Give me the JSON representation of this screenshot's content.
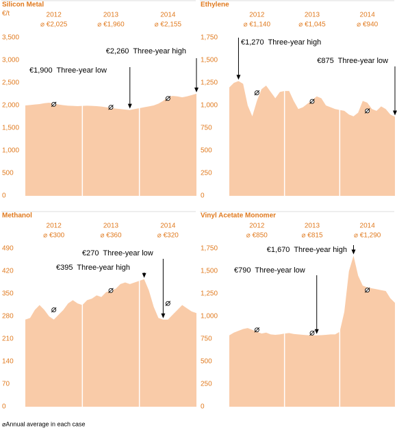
{
  "chart_data": [
    {
      "type": "area",
      "title": "Silicon Metal",
      "unit": "€/t",
      "color": "#f9cba8",
      "years": [
        "2012",
        "2013",
        "2014"
      ],
      "averages": [
        2025,
        1960,
        2155
      ],
      "value_labels": [
        "⌀ €2,025",
        "⌀ €1,960",
        "⌀ €2,155"
      ],
      "xlim": [
        0,
        36
      ],
      "x": [
        0,
        1,
        2,
        3,
        4,
        5,
        6,
        7,
        8,
        9,
        10,
        11,
        12,
        13,
        14,
        15,
        16,
        17,
        18,
        19,
        20,
        21,
        22,
        23,
        24,
        25,
        26,
        27,
        28,
        29,
        30,
        31,
        32,
        33,
        34,
        35,
        36
      ],
      "values": [
        2000,
        2010,
        2020,
        2030,
        2050,
        2060,
        2040,
        2020,
        2005,
        1995,
        1990,
        1985,
        1990,
        1995,
        1990,
        1985,
        1975,
        1960,
        1945,
        1930,
        1920,
        1910,
        1900,
        1920,
        1940,
        1960,
        1980,
        2000,
        2040,
        2100,
        2190,
        2210,
        2200,
        2180,
        2200,
        2230,
        2260
      ],
      "ylim": [
        0,
        3500
      ],
      "yticks": [
        0,
        500,
        {
          "value": 1000,
          "label": "1,000"
        },
        {
          "value": 1500,
          "label": "1,500"
        },
        {
          "value": 2000,
          "label": "2,000"
        },
        {
          "value": 2500,
          "label": "2,500"
        },
        {
          "value": 3000,
          "label": "3,000"
        },
        {
          "value": 3500,
          "label": "3,500"
        }
      ],
      "annotations": [
        {
          "text": "€2,260  Three-year high",
          "x": 36,
          "value": 2260
        },
        {
          "text": "€1,900  Three-year low",
          "x": 22,
          "value": 1900
        }
      ]
    },
    {
      "type": "area",
      "title": "Ethylene",
      "color": "#f9cba8",
      "years": [
        "2012",
        "2013",
        "2014"
      ],
      "averages": [
        1140,
        1045,
        940
      ],
      "value_labels": [
        "⌀ €1,140",
        "⌀ €1,045",
        "⌀ €940"
      ],
      "xlim": [
        0,
        36
      ],
      "x": [
        0,
        1,
        2,
        3,
        4,
        5,
        6,
        7,
        8,
        9,
        10,
        11,
        12,
        13,
        14,
        15,
        16,
        17,
        18,
        19,
        20,
        21,
        22,
        23,
        24,
        25,
        26,
        27,
        28,
        29,
        30,
        31,
        32,
        33,
        34,
        35,
        36
      ],
      "values": [
        1200,
        1250,
        1270,
        1240,
        1000,
        880,
        1050,
        1180,
        1220,
        1150,
        1080,
        1150,
        1160,
        1160,
        1050,
        960,
        980,
        1020,
        1060,
        1100,
        1080,
        1000,
        980,
        960,
        950,
        940,
        900,
        880,
        920,
        1050,
        1030,
        960,
        940,
        990,
        960,
        900,
        875
      ],
      "ylim": [
        0,
        1750
      ],
      "yticks": [
        0,
        250,
        500,
        750,
        {
          "value": 1000,
          "label": "1,000"
        },
        {
          "value": 1250,
          "label": "1,250"
        },
        {
          "value": 1500,
          "label": "1,500"
        },
        {
          "value": 1750,
          "label": "1,750"
        }
      ],
      "annotations": [
        {
          "text": "€1,270  Three-year high",
          "x": 2,
          "value": 1270
        },
        {
          "text": "€875  Three-year low",
          "x": 36,
          "value": 875
        }
      ]
    },
    {
      "type": "area",
      "title": "Methanol",
      "color": "#f9cba8",
      "years": [
        "2012",
        "2013",
        "2014"
      ],
      "averages": [
        300,
        360,
        320
      ],
      "value_labels": [
        "⌀ €300",
        "⌀ €360",
        "⌀ €320"
      ],
      "xlim": [
        0,
        36
      ],
      "x": [
        0,
        1,
        2,
        3,
        4,
        5,
        6,
        7,
        8,
        9,
        10,
        11,
        12,
        13,
        14,
        15,
        16,
        17,
        18,
        19,
        20,
        21,
        22,
        23,
        24,
        25,
        26,
        27,
        28,
        29,
        30,
        31,
        32,
        33,
        34,
        35,
        36
      ],
      "values": [
        270,
        275,
        300,
        315,
        300,
        280,
        270,
        285,
        300,
        320,
        330,
        320,
        315,
        330,
        335,
        345,
        340,
        355,
        360,
        365,
        380,
        385,
        380,
        385,
        390,
        395,
        360,
        310,
        275,
        270,
        270,
        285,
        300,
        315,
        305,
        295,
        290
      ],
      "ylim": [
        0,
        490
      ],
      "yticks": [
        0,
        70,
        140,
        210,
        280,
        350,
        420,
        490
      ],
      "annotations": [
        {
          "text": "€270  Three-year low",
          "x": 29,
          "value": 270
        },
        {
          "text": "€395  Three-year high",
          "x": 25,
          "value": 395
        }
      ]
    },
    {
      "type": "area",
      "title": "Vinyl Acetate Monomer",
      "color": "#f9cba8",
      "years": [
        "2012",
        "2013",
        "2014"
      ],
      "averages": [
        850,
        815,
        1290
      ],
      "value_labels": [
        "⌀ €850",
        "⌀ €815",
        "⌀ €1,290"
      ],
      "xlim": [
        0,
        36
      ],
      "x": [
        0,
        1,
        2,
        3,
        4,
        5,
        6,
        7,
        8,
        9,
        10,
        11,
        12,
        13,
        14,
        15,
        16,
        17,
        18,
        19,
        20,
        21,
        22,
        23,
        24,
        25,
        26,
        27,
        28,
        29,
        30,
        31,
        32,
        33,
        34,
        35,
        36
      ],
      "values": [
        790,
        820,
        840,
        860,
        870,
        850,
        830,
        810,
        820,
        800,
        795,
        800,
        810,
        815,
        805,
        800,
        795,
        792,
        790,
        790,
        792,
        795,
        800,
        800,
        830,
        1050,
        1500,
        1670,
        1450,
        1340,
        1320,
        1310,
        1300,
        1290,
        1280,
        1200,
        1150
      ],
      "ylim": [
        0,
        1750
      ],
      "yticks": [
        0,
        250,
        500,
        750,
        {
          "value": 1000,
          "label": "1,000"
        },
        {
          "value": 1250,
          "label": "1,250"
        },
        {
          "value": 1500,
          "label": "1,500"
        },
        {
          "value": 1750,
          "label": "1,750"
        }
      ],
      "annotations": [
        {
          "text": "€1,670  Three-year high",
          "x": 27,
          "value": 1670
        },
        {
          "text": "€790  Three-year low",
          "x": 19,
          "value": 790
        }
      ]
    }
  ],
  "footnote": "⌀Annual average in each case"
}
